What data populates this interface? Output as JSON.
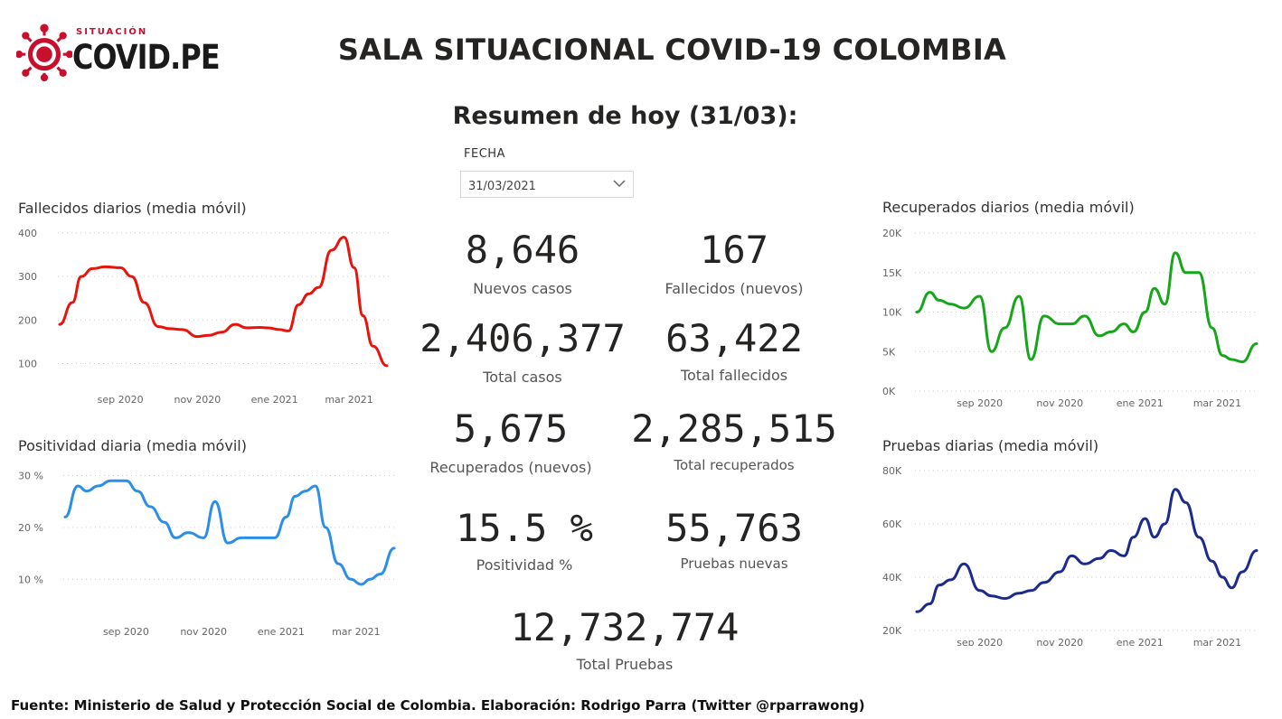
{
  "header": {
    "logo_tag": "SITUACIÓN",
    "logo_name": "COVID.PE",
    "title": "SALA SITUACIONAL COVID-19 COLOMBIA",
    "subtitle": "Resumen de hoy (31/03):"
  },
  "filter": {
    "label": "FECHA",
    "value": "31/03/2021"
  },
  "kpis": [
    {
      "value": "8,646",
      "label": "Nuevos casos"
    },
    {
      "value": "167",
      "label": "Fallecidos (nuevos)"
    },
    {
      "value": "2,406,377",
      "label": "Total casos"
    },
    {
      "value": "63,422",
      "label": "Total fallecidos"
    },
    {
      "value": "5,675",
      "label": "Recuperados (nuevos)"
    },
    {
      "value": "2,285,515",
      "label": "Total recuperados"
    },
    {
      "value": "15.5 %",
      "label": "Positividad %"
    },
    {
      "value": "55,763",
      "label": "Pruebas nuevas"
    },
    {
      "value": "12,732,774",
      "label": "Total Pruebas"
    }
  ],
  "footer": "Fuente: Ministerio de Salud y Protección Social de Colombia. Elaboración: Rodrigo Parra (Twitter @rparrawong)",
  "colors": {
    "red": "#e8140c",
    "green": "#16a61a",
    "blue": "#2b8ee8",
    "navy": "#1c2a8e",
    "logo_red": "#c8102e"
  },
  "chart_data": [
    {
      "id": "fallecidos",
      "type": "line",
      "title": "Fallecidos diarios (media móvil)",
      "color": "#e8140c",
      "ylim": [
        70,
        410
      ],
      "yticks": [
        100,
        200,
        300,
        400
      ],
      "ytick_labels": [
        "100",
        "200",
        "300",
        "400"
      ],
      "x": [
        "2020-07-15",
        "2020-07-25",
        "2020-08-01",
        "2020-08-10",
        "2020-08-20",
        "2020-09-01",
        "2020-09-10",
        "2020-09-20",
        "2020-10-01",
        "2020-10-10",
        "2020-10-20",
        "2020-11-01",
        "2020-11-10",
        "2020-11-20",
        "2020-12-01",
        "2020-12-10",
        "2020-12-20",
        "2020-12-27",
        "2021-01-05",
        "2021-01-12",
        "2021-01-20",
        "2021-01-28",
        "2021-02-05",
        "2021-02-15",
        "2021-02-25",
        "2021-03-05",
        "2021-03-12",
        "2021-03-20",
        "2021-03-31"
      ],
      "y": [
        190,
        240,
        300,
        318,
        322,
        320,
        300,
        240,
        185,
        180,
        178,
        162,
        165,
        172,
        190,
        182,
        183,
        182,
        178,
        175,
        235,
        260,
        275,
        360,
        390,
        320,
        210,
        140,
        95
      ],
      "xtick_dates": [
        "2020-09-01",
        "2020-11-01",
        "2021-01-01",
        "2021-03-01"
      ],
      "xtick_labels": [
        "sep 2020",
        "nov 2020",
        "ene 2021",
        "mar 2021"
      ]
    },
    {
      "id": "positividad",
      "type": "line",
      "title": "Positividad diaria (media móvil)",
      "color": "#2b8ee8",
      "ylim": [
        5,
        32
      ],
      "yticks": [
        10,
        20,
        30
      ],
      "ytick_labels": [
        "10 %",
        "20 %",
        "30 %"
      ],
      "x": [
        "2020-07-15",
        "2020-07-25",
        "2020-08-01",
        "2020-08-10",
        "2020-08-20",
        "2020-09-01",
        "2020-09-10",
        "2020-09-20",
        "2020-10-01",
        "2020-10-10",
        "2020-10-20",
        "2020-11-01",
        "2020-11-10",
        "2020-11-20",
        "2020-12-01",
        "2020-12-10",
        "2020-12-20",
        "2020-12-27",
        "2021-01-05",
        "2021-01-12",
        "2021-01-20",
        "2021-01-28",
        "2021-02-05",
        "2021-02-15",
        "2021-02-25",
        "2021-03-05",
        "2021-03-12",
        "2021-03-20",
        "2021-03-31"
      ],
      "y": [
        22,
        28,
        27,
        28,
        29,
        29,
        27,
        24,
        21,
        18,
        19,
        18,
        25,
        17,
        18,
        18,
        18,
        18,
        22,
        26,
        27,
        28,
        20,
        13,
        10,
        9,
        10,
        11,
        16
      ],
      "xtick_dates": [
        "2020-09-01",
        "2020-11-01",
        "2021-01-01",
        "2021-03-01"
      ],
      "xtick_labels": [
        "sep 2020",
        "nov 2020",
        "ene 2021",
        "mar 2021"
      ]
    },
    {
      "id": "recuperados",
      "type": "line",
      "title": "Recuperados diarios (media móvil)",
      "color": "#16a61a",
      "ylim": [
        0,
        20000
      ],
      "yticks": [
        0,
        5000,
        10000,
        15000,
        20000
      ],
      "ytick_labels": [
        "0K",
        "5K",
        "10K",
        "15K",
        "20K"
      ],
      "x": [
        "2020-07-15",
        "2020-07-25",
        "2020-08-01",
        "2020-08-10",
        "2020-08-20",
        "2020-09-01",
        "2020-09-10",
        "2020-09-20",
        "2020-10-01",
        "2020-10-10",
        "2020-10-20",
        "2020-11-01",
        "2020-11-10",
        "2020-11-20",
        "2020-12-01",
        "2020-12-10",
        "2020-12-20",
        "2020-12-27",
        "2021-01-05",
        "2021-01-12",
        "2021-01-20",
        "2021-01-28",
        "2021-02-05",
        "2021-02-15",
        "2021-02-25",
        "2021-03-05",
        "2021-03-12",
        "2021-03-20",
        "2021-03-31"
      ],
      "y": [
        10000,
        12500,
        11500,
        11000,
        10500,
        12000,
        5000,
        8000,
        12000,
        4000,
        9500,
        8500,
        8500,
        9500,
        7000,
        7500,
        8500,
        7500,
        10000,
        13000,
        11000,
        17500,
        15000,
        15000,
        8000,
        4500,
        4000,
        3700,
        6000
      ],
      "xtick_dates": [
        "2020-09-01",
        "2020-11-01",
        "2021-01-01",
        "2021-03-01"
      ],
      "xtick_labels": [
        "sep 2020",
        "nov 2020",
        "ene 2021",
        "mar 2021"
      ]
    },
    {
      "id": "pruebas",
      "type": "line",
      "title": "Pruebas diarias (media móvil)",
      "color": "#1c2a8e",
      "ylim": [
        20000,
        80000
      ],
      "yticks": [
        20000,
        40000,
        60000,
        80000
      ],
      "ytick_labels": [
        "20K",
        "40K",
        "60K",
        "80K"
      ],
      "x": [
        "2020-07-15",
        "2020-07-25",
        "2020-08-01",
        "2020-08-10",
        "2020-08-20",
        "2020-09-01",
        "2020-09-10",
        "2020-09-20",
        "2020-10-01",
        "2020-10-10",
        "2020-10-20",
        "2020-11-01",
        "2020-11-10",
        "2020-11-20",
        "2020-12-01",
        "2020-12-10",
        "2020-12-20",
        "2020-12-27",
        "2021-01-05",
        "2021-01-12",
        "2021-01-20",
        "2021-01-28",
        "2021-02-05",
        "2021-02-15",
        "2021-02-25",
        "2021-03-05",
        "2021-03-12",
        "2021-03-20",
        "2021-03-31"
      ],
      "y": [
        27000,
        30000,
        37000,
        39000,
        45000,
        35000,
        33000,
        32000,
        34000,
        35000,
        38000,
        42000,
        48000,
        45000,
        47000,
        50000,
        48000,
        55000,
        62000,
        55000,
        60000,
        73000,
        68000,
        55000,
        46000,
        40000,
        36000,
        42000,
        50000
      ],
      "xtick_dates": [
        "2020-09-01",
        "2020-11-01",
        "2021-01-01",
        "2021-03-01"
      ],
      "xtick_labels": [
        "sep 2020",
        "nov 2020",
        "ene 2021",
        "mar 2021"
      ]
    }
  ]
}
